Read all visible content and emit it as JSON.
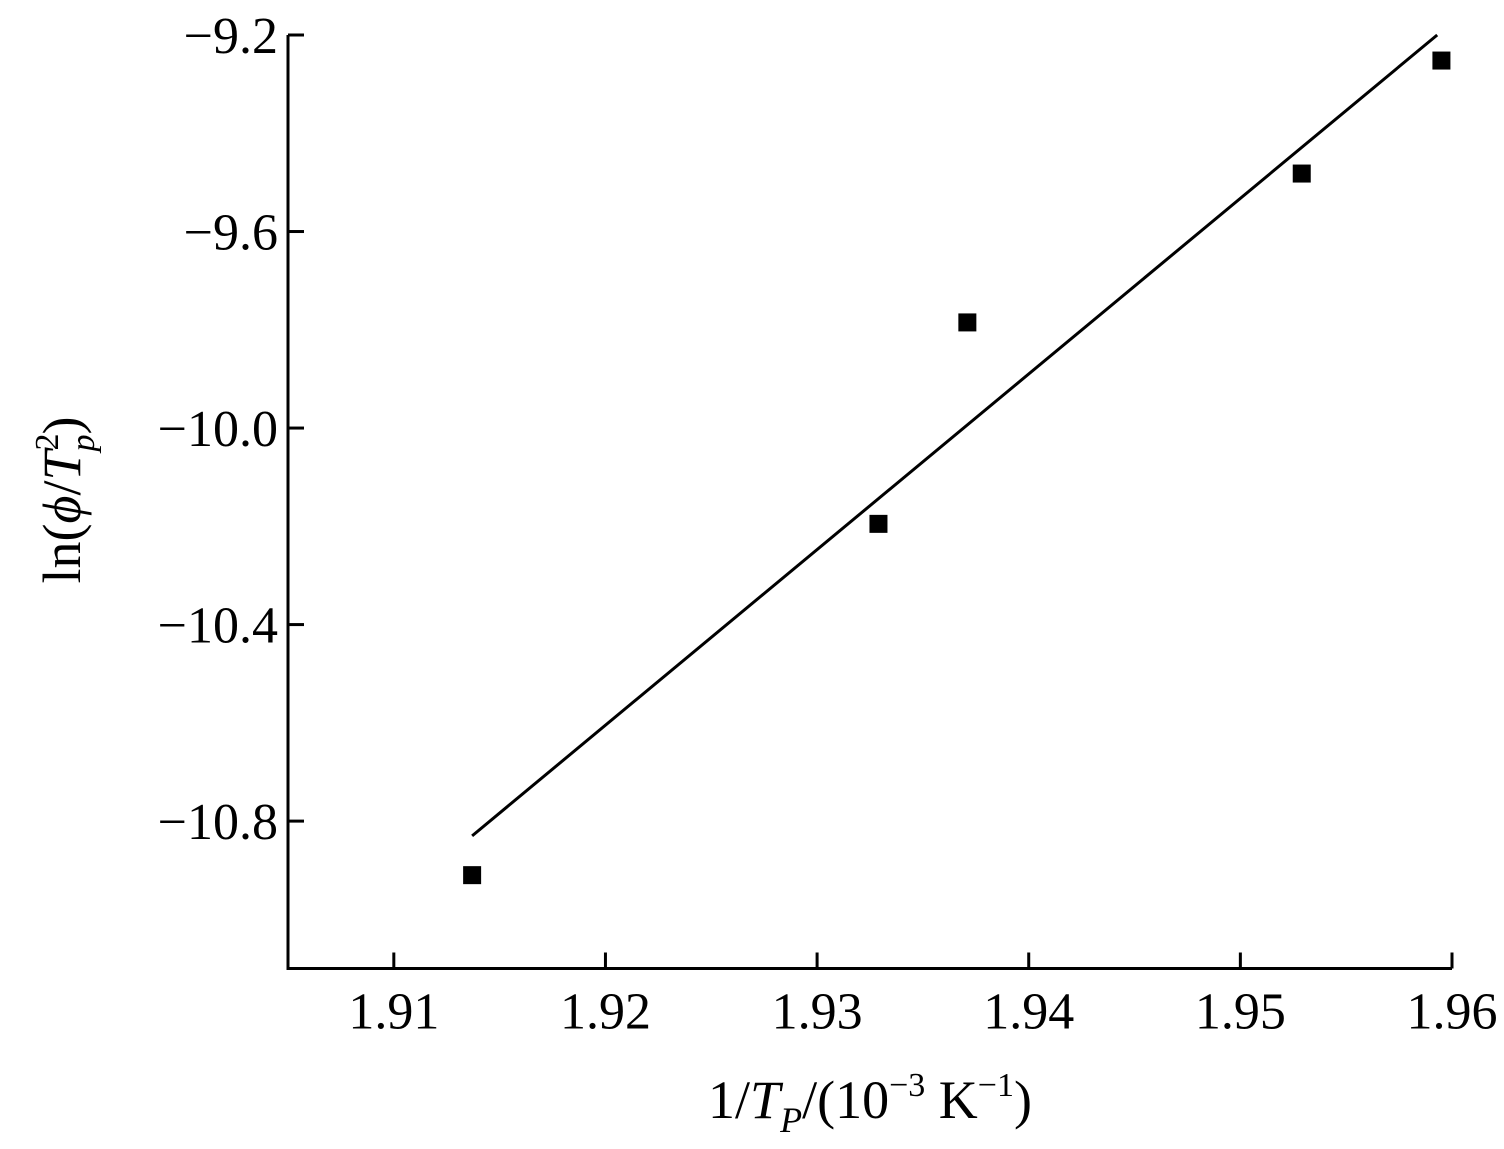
{
  "chart_data": {
    "type": "scatter",
    "xlabel": {
      "prefix": "1/",
      "var": "T",
      "sub": "P",
      "unit_open": "/(10",
      "unit_exp": "−3",
      "unit_mid": " K",
      "unit_exp2": "−1",
      "unit_close": ")"
    },
    "ylabel": {
      "prefix": "ln(",
      "phi": "ϕ",
      "slash": "/",
      "var": "T",
      "sup": "2",
      "sub": "p",
      "close": ")"
    },
    "xlim": [
      1.905,
      1.96
    ],
    "ylim": [
      -11.1,
      -9.2
    ],
    "x_ticks": [
      1.91,
      1.92,
      1.93,
      1.94,
      1.95,
      1.96
    ],
    "x_tick_labels": [
      "1.91",
      "1.92",
      "1.93",
      "1.94",
      "1.95",
      "1.96"
    ],
    "y_ticks": [
      -9.2,
      -9.6,
      -10.0,
      -10.4,
      -10.8
    ],
    "y_tick_labels": [
      "−9.2",
      "−9.6",
      "−10.0",
      "−10.4",
      "−10.8"
    ],
    "grid": false,
    "series": [
      {
        "marker": "square",
        "color": "#000000",
        "x": [
          1.9137,
          1.9329,
          1.9371,
          1.9529,
          1.9595
        ],
        "y": [
          -10.91,
          -10.195,
          -9.785,
          -9.482,
          -9.252
        ]
      }
    ],
    "fit_line": {
      "x": [
        1.9137,
        1.9593
      ],
      "y": [
        -10.83,
        -9.2
      ]
    }
  }
}
